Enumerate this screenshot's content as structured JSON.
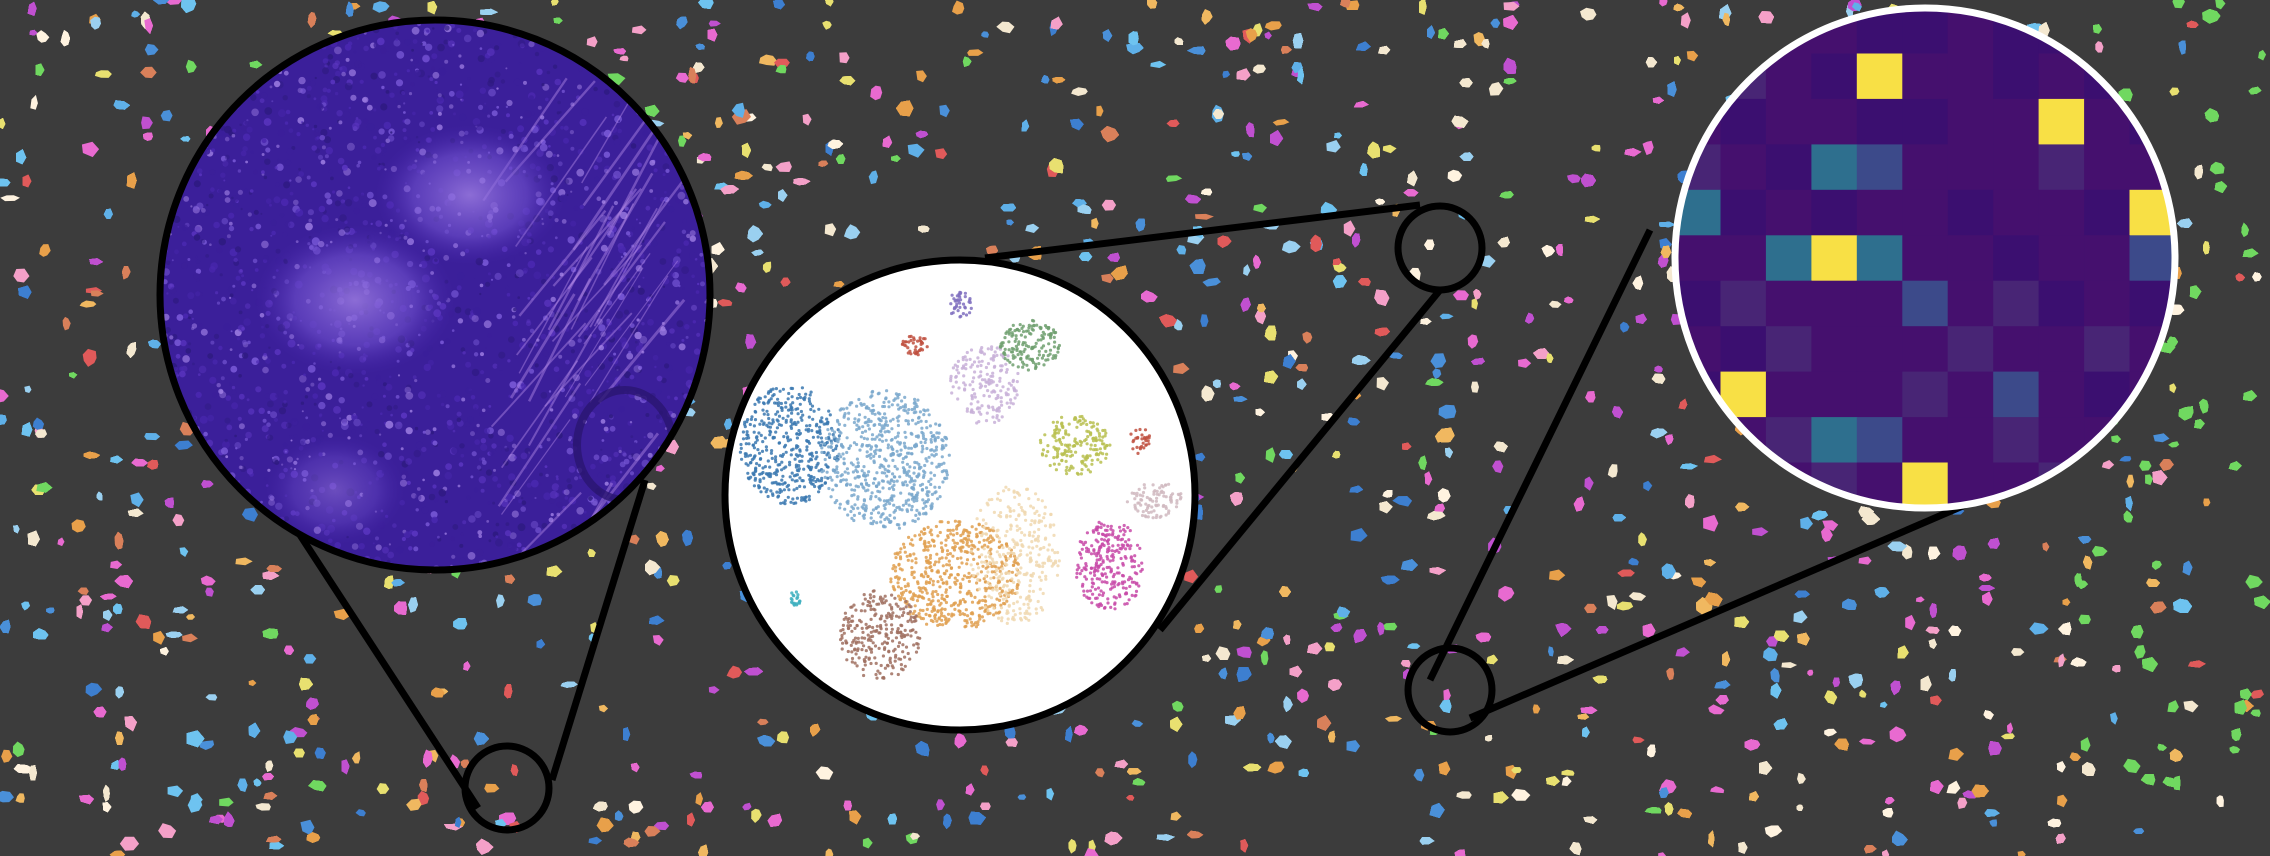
{
  "figure": {
    "description_free": true,
    "panels": [
      {
        "id": "histology",
        "kind": "he-stained-tissue-zoom"
      },
      {
        "id": "embedding",
        "kind": "cell-cluster-embedding-zoom"
      },
      {
        "id": "expression",
        "kind": "gene-expression-heatmap-zoom"
      }
    ]
  },
  "colors": {
    "background": "#3c3c3c",
    "outline": "#000000",
    "heatmap_outline": "#ffffff",
    "cell_palette": [
      "#4a90d9",
      "#3d7fd0",
      "#5fb0e8",
      "#6ec3f0",
      "#e8a04a",
      "#f0b860",
      "#d9805a",
      "#e05a5a",
      "#f4e8d0",
      "#fff3e0",
      "#e86ad0",
      "#c050d0",
      "#70d860",
      "#f4a0c8",
      "#e8e070",
      "#9ad0f0"
    ],
    "he_stain": [
      "#3b1f9a",
      "#4a28b0",
      "#5a35c0",
      "#2e1a80",
      "#7a5ad8",
      "#9a7ae0"
    ],
    "embedding_clusters": [
      "#3a78b0",
      "#7aa8cc",
      "#e0a050",
      "#a07060",
      "#f0d8b0",
      "#c8b0d8",
      "#70a070",
      "#c84aa8",
      "#b8c050",
      "#c05040",
      "#8070c0",
      "#40b0c0",
      "#d0b8c0"
    ],
    "heatmap_scale": [
      "#3b0f70",
      "#45106e",
      "#482575",
      "#3c4a8a",
      "#2e6f8e",
      "#2a9a8a",
      "#4cc08a",
      "#f8e045"
    ]
  },
  "heatmap": {
    "rows": 11,
    "cols": 11,
    "values": [
      [
        1,
        0,
        1,
        1,
        0,
        0,
        1,
        0,
        0,
        1,
        0
      ],
      [
        0,
        2,
        1,
        0,
        7,
        1,
        1,
        0,
        1,
        0,
        1
      ],
      [
        1,
        0,
        1,
        1,
        0,
        0,
        1,
        1,
        7,
        1,
        0
      ],
      [
        2,
        1,
        0,
        4,
        3,
        1,
        1,
        1,
        2,
        1,
        1
      ],
      [
        4,
        0,
        1,
        0,
        1,
        1,
        0,
        1,
        1,
        0,
        7
      ],
      [
        1,
        1,
        4,
        7,
        4,
        1,
        1,
        0,
        1,
        1,
        3
      ],
      [
        0,
        2,
        1,
        1,
        1,
        3,
        1,
        2,
        0,
        1,
        0
      ],
      [
        1,
        0,
        2,
        1,
        1,
        1,
        2,
        1,
        1,
        2,
        1
      ],
      [
        0,
        7,
        1,
        1,
        1,
        2,
        1,
        3,
        1,
        0,
        1
      ],
      [
        1,
        1,
        2,
        4,
        3,
        1,
        1,
        2,
        1,
        1,
        0
      ],
      [
        0,
        1,
        1,
        2,
        1,
        7,
        1,
        1,
        2,
        1,
        1
      ]
    ]
  }
}
